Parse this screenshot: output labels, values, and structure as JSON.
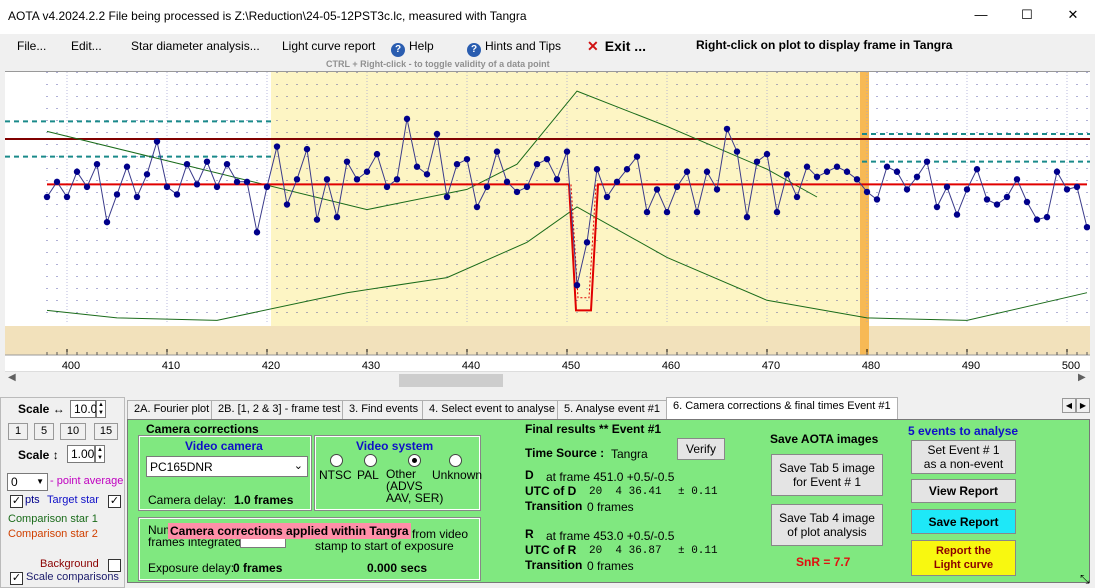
{
  "window": {
    "title": "AOTA v4.2024.2.2    File being processed is Z:\\Reduction\\24-05-12PST3c.lc, measured with Tangra",
    "minimize": "—",
    "maximize": "☐",
    "close": "✕"
  },
  "menu": {
    "file": "File...",
    "edit": "Edit...",
    "star_diameter": "Star diameter analysis...",
    "light_curve_report": "Light curve report",
    "help": "Help",
    "hints": "Hints and Tips",
    "exit": "Exit ...",
    "help_icon": "?",
    "exit_icon": "✕",
    "right_click_hint": "Right-click on plot to display frame in Tangra",
    "ctrl_hint": "CTRL + Right-click  -  to toggle validity of a data point"
  },
  "plot": {
    "x_ticks": [
      "400",
      "410",
      "420",
      "430",
      "440",
      "450",
      "460",
      "470",
      "480",
      "490",
      "500"
    ],
    "highlight_color": "#fdf5c4",
    "lower_band_color": "#f2e1bb",
    "marker_color": "#f7b955",
    "points_color": "#00008b",
    "model_color": "#e00000",
    "baseline_color": "#800000",
    "comparison_color": "#1a6b1a",
    "teal_color": "#1a8a8a"
  },
  "chart_data": {
    "type": "line",
    "x_range": [
      399.4,
      502.2
    ],
    "target_star": [
      [
        398,
        0.48
      ],
      [
        399,
        0.42
      ],
      [
        400,
        0.48
      ],
      [
        401,
        0.38
      ],
      [
        402,
        0.44
      ],
      [
        403,
        0.35
      ],
      [
        404,
        0.58
      ],
      [
        405,
        0.47
      ],
      [
        406,
        0.36
      ],
      [
        407,
        0.48
      ],
      [
        408,
        0.39
      ],
      [
        409,
        0.26
      ],
      [
        410,
        0.44
      ],
      [
        411,
        0.47
      ],
      [
        412,
        0.35
      ],
      [
        413,
        0.43
      ],
      [
        414,
        0.34
      ],
      [
        415,
        0.44
      ],
      [
        416,
        0.35
      ],
      [
        417,
        0.42
      ],
      [
        418,
        0.42
      ],
      [
        419,
        0.62
      ],
      [
        420,
        0.44
      ],
      [
        421,
        0.28
      ],
      [
        422,
        0.51
      ],
      [
        423,
        0.41
      ],
      [
        424,
        0.29
      ],
      [
        425,
        0.57
      ],
      [
        426,
        0.41
      ],
      [
        427,
        0.56
      ],
      [
        428,
        0.34
      ],
      [
        429,
        0.41
      ],
      [
        430,
        0.38
      ],
      [
        431,
        0.31
      ],
      [
        432,
        0.44
      ],
      [
        433,
        0.41
      ],
      [
        434,
        0.17
      ],
      [
        435,
        0.36
      ],
      [
        436,
        0.39
      ],
      [
        437,
        0.23
      ],
      [
        438,
        0.48
      ],
      [
        439,
        0.35
      ],
      [
        440,
        0.33
      ],
      [
        441,
        0.52
      ],
      [
        442,
        0.44
      ],
      [
        443,
        0.3
      ],
      [
        444,
        0.42
      ],
      [
        445,
        0.46
      ],
      [
        446,
        0.44
      ],
      [
        447,
        0.35
      ],
      [
        448,
        0.33
      ],
      [
        449,
        0.41
      ],
      [
        450,
        0.3
      ],
      [
        451,
        0.83
      ],
      [
        452,
        0.66
      ],
      [
        453,
        0.37
      ],
      [
        454,
        0.48
      ],
      [
        455,
        0.42
      ],
      [
        456,
        0.37
      ],
      [
        457,
        0.32
      ],
      [
        458,
        0.54
      ],
      [
        459,
        0.45
      ],
      [
        460,
        0.54
      ],
      [
        461,
        0.44
      ],
      [
        462,
        0.38
      ],
      [
        463,
        0.54
      ],
      [
        464,
        0.38
      ],
      [
        465,
        0.45
      ],
      [
        466,
        0.21
      ],
      [
        467,
        0.3
      ],
      [
        468,
        0.56
      ],
      [
        469,
        0.34
      ],
      [
        470,
        0.31
      ],
      [
        471,
        0.54
      ],
      [
        472,
        0.39
      ],
      [
        473,
        0.48
      ],
      [
        474,
        0.36
      ],
      [
        475,
        0.4
      ],
      [
        476,
        0.38
      ],
      [
        477,
        0.36
      ],
      [
        478,
        0.38
      ],
      [
        479,
        0.41
      ],
      [
        480,
        0.46
      ],
      [
        481,
        0.49
      ],
      [
        482,
        0.36
      ],
      [
        483,
        0.38
      ],
      [
        484,
        0.45
      ],
      [
        485,
        0.4
      ],
      [
        486,
        0.34
      ],
      [
        487,
        0.52
      ],
      [
        488,
        0.44
      ],
      [
        489,
        0.55
      ],
      [
        490,
        0.45
      ],
      [
        491,
        0.37
      ],
      [
        492,
        0.49
      ],
      [
        493,
        0.51
      ],
      [
        494,
        0.48
      ],
      [
        495,
        0.41
      ],
      [
        496,
        0.5
      ],
      [
        497,
        0.57
      ],
      [
        498,
        0.56
      ],
      [
        499,
        0.38
      ],
      [
        500,
        0.45
      ],
      [
        501,
        0.44
      ],
      [
        502,
        0.6
      ]
    ],
    "model": [
      [
        398,
        0.43
      ],
      [
        450.2,
        0.43
      ],
      [
        450.9,
        0.93
      ],
      [
        452.4,
        0.93
      ],
      [
        453.1,
        0.43
      ],
      [
        502,
        0.43
      ]
    ],
    "comparison_star": [
      [
        398,
        0.22
      ],
      [
        430,
        0.53
      ],
      [
        440,
        0.45
      ],
      [
        445,
        0.35
      ],
      [
        451,
        0.06
      ],
      [
        460,
        0.2
      ],
      [
        470,
        0.37
      ],
      [
        475,
        0.48
      ]
    ],
    "comparison_star_2": [
      [
        398,
        0.93
      ],
      [
        405,
        0.96
      ],
      [
        415,
        0.97
      ],
      [
        428,
        0.86
      ],
      [
        438,
        0.8
      ],
      [
        446,
        0.66
      ],
      [
        451,
        0.52
      ],
      [
        460,
        0.72
      ],
      [
        470,
        0.89
      ],
      [
        480,
        0.96
      ],
      [
        490,
        0.97
      ],
      [
        502,
        0.86
      ]
    ],
    "highlight_region": [
      420.4,
      479.5
    ],
    "event_marker": 479.8
  },
  "left": {
    "scale_h_label": "Scale ↔",
    "scale_h_value": "10.0",
    "scale_btns": [
      "1",
      "5",
      "10",
      "15"
    ],
    "scale_v_label": "Scale ↕",
    "scale_v_value": "1.00",
    "point_avg_value": "0",
    "point_avg_label": "- point average",
    "pts_label": "pts",
    "target_label": "Target star",
    "comp1_label": "Comparison star 1",
    "comp2_label": "Comparison star 2",
    "background_label": "Background",
    "scale_comp_label": "Scale comparisons"
  },
  "tabs": [
    "2A. Fourier plot",
    "2B. [1, 2 & 3] - frame test",
    "3. Find events",
    "4. Select event to analyse",
    "5. Analyse event #1",
    "6. Camera corrections & final times Event #1"
  ],
  "camera": {
    "section_title": "Camera corrections",
    "video_camera_title": "Video camera",
    "camera_value": "PC165DNR",
    "camera_delay_label": "Camera delay:",
    "camera_delay_value": "1.0 frames",
    "video_system_title": "Video system",
    "ntsc": "NTSC",
    "pal": "PAL",
    "other": "Other\n(ADVS\nAAV, SER)",
    "unknown": "Unknown",
    "num_frames_label_1": "Num",
    "num_frames_label_2": "frames integrated",
    "overlay_text": "Camera corrections applied within Tangra",
    "from_video_1": "from video",
    "from_video_2": "stamp to start of exposure",
    "exposure_delay_label": "Exposure delay:",
    "exposure_delay_value": "0 frames",
    "secs_value": "0.000 secs"
  },
  "final": {
    "title": "Final results  **  Event #1",
    "verify": "Verify",
    "time_source_label": "Time Source :",
    "time_source_value": "Tangra",
    "d_label": "D",
    "d_frame": "at frame 451.0  +0.5/-0.5",
    "utc_d_label": "UTC of D",
    "utc_d_value": "20  4 36.41",
    "utc_d_err": "± 0.11",
    "transition_label": "Transition",
    "d_transition": "0 frames",
    "r_label": "R",
    "r_frame": "at frame 453.0  +0.5/-0.5",
    "utc_r_label": "UTC of R",
    "utc_r_value": "20  4 36.87",
    "utc_r_err": "± 0.11",
    "r_transition": "0 frames"
  },
  "save": {
    "title": "Save AOTA images",
    "tab5_btn": "Save Tab 5 image\nfor Event # 1",
    "tab4_btn": "Save Tab 4 image\nof plot analysis",
    "snr": "SnR = 7.7"
  },
  "events": {
    "title": "5  events to analyse",
    "set_nonevent": "Set Event # 1\nas a non-event",
    "view_report": "View Report",
    "save_report": "Save Report",
    "report_lc": "Report the\nLight curve"
  }
}
